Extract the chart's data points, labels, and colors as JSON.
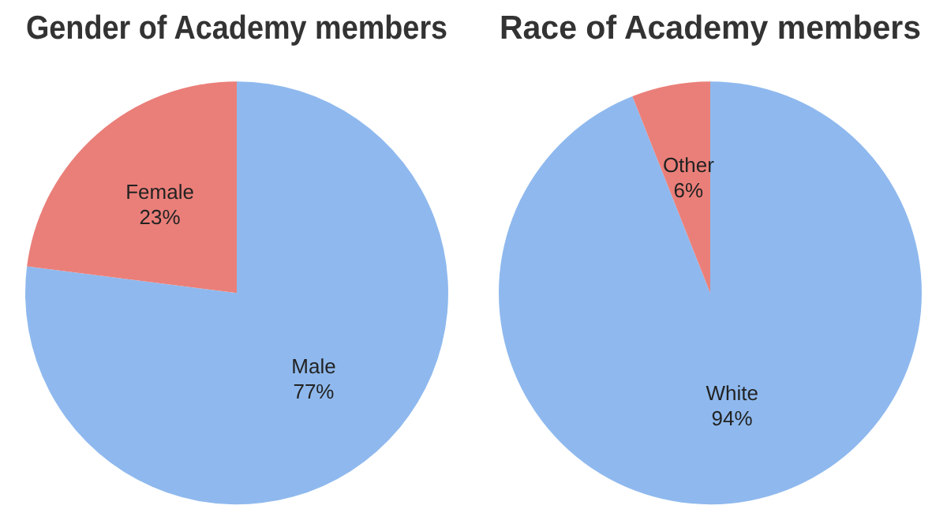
{
  "chart_data": [
    {
      "type": "pie",
      "title": "Gender of Academy members",
      "categories": [
        "Male",
        "Female"
      ],
      "values": [
        77,
        23
      ],
      "colors": [
        "#8fb9ee",
        "#ea7f79"
      ],
      "value_labels": [
        "77%",
        "23%"
      ],
      "legend": false
    },
    {
      "type": "pie",
      "title": "Race of Academy members",
      "categories": [
        "White",
        "Other"
      ],
      "values": [
        94,
        6
      ],
      "colors": [
        "#8fb9ee",
        "#ea7f79"
      ],
      "value_labels": [
        "94%",
        "6%"
      ],
      "legend": false
    }
  ]
}
